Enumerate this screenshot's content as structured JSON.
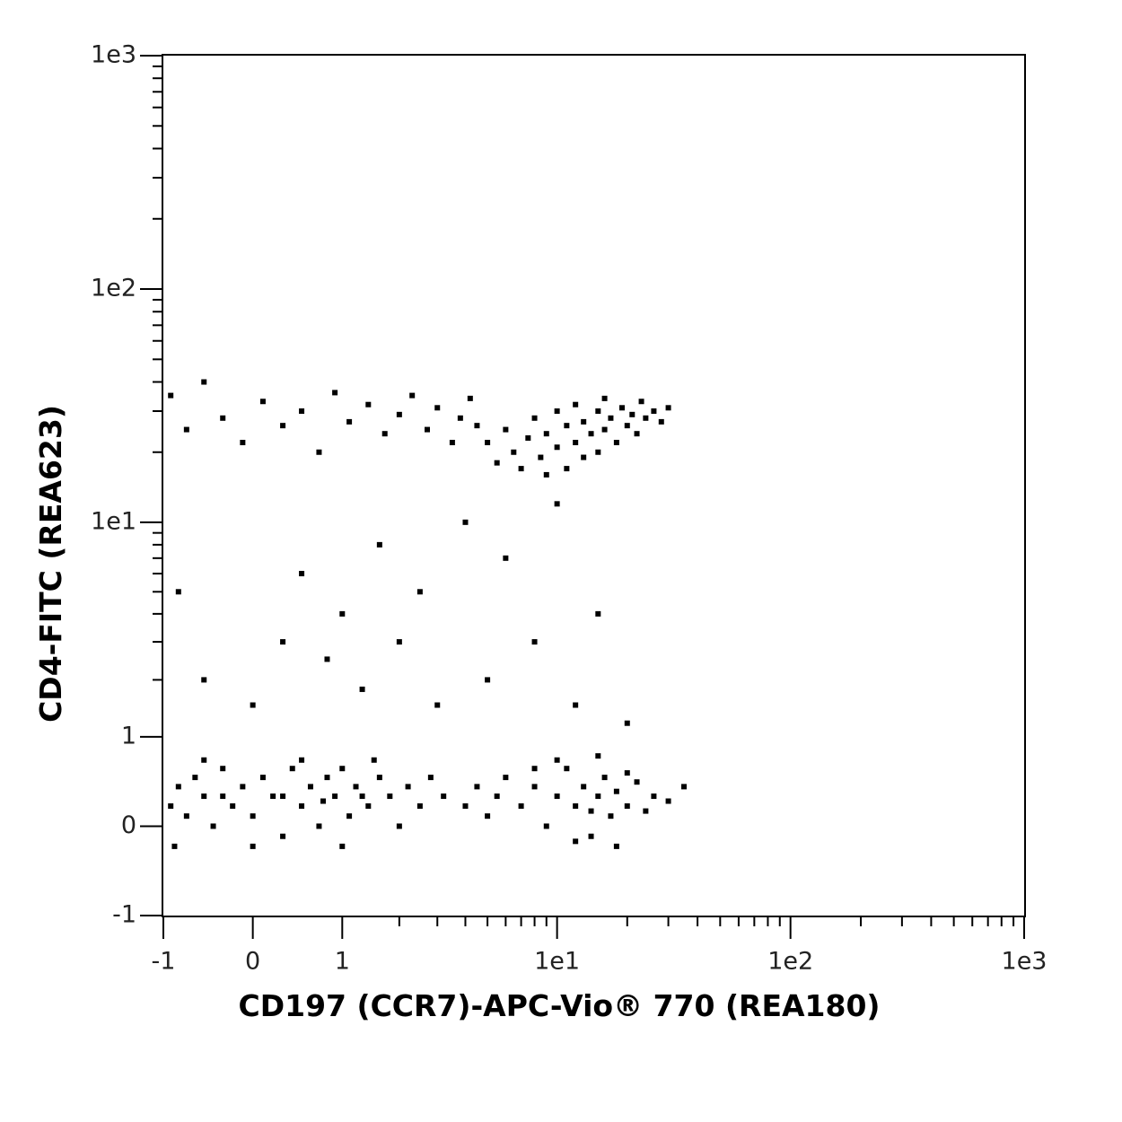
{
  "chart_data": {
    "type": "scatter",
    "xlabel": "CD197 (CCR7)-APC-Vio® 770 (REA180)",
    "ylabel": "CD4-FITC (REA623)",
    "xscale": "asinh",
    "yscale": "asinh",
    "xlim": [
      -1,
      1000
    ],
    "ylim": [
      -1,
      1000
    ],
    "xticks": [
      -1,
      0,
      1,
      {
        "value": 10,
        "label": "1e1"
      },
      {
        "value": 100,
        "label": "1e2"
      },
      {
        "value": 1000,
        "label": "1e3"
      }
    ],
    "yticks": [
      -1,
      0,
      1,
      {
        "value": 10,
        "label": "1e1"
      },
      {
        "value": 100,
        "label": "1e2"
      },
      {
        "value": 1000,
        "label": "1e3"
      }
    ],
    "xminorticks": [
      2,
      3,
      4,
      5,
      6,
      7,
      8,
      9,
      20,
      30,
      40,
      50,
      60,
      70,
      80,
      90,
      200,
      300,
      400,
      500,
      600,
      700,
      800,
      900
    ],
    "yminorticks": [
      2,
      3,
      4,
      5,
      6,
      7,
      8,
      9,
      20,
      30,
      40,
      50,
      60,
      70,
      80,
      90,
      200,
      300,
      400,
      500,
      600,
      700,
      800,
      900
    ],
    "series": [
      {
        "color": "#000000",
        "x": [
          -0.9,
          -0.8,
          -0.7,
          -0.6,
          -0.5,
          -0.4,
          -0.3,
          -0.2,
          -0.1,
          0,
          0.1,
          0.2,
          0.3,
          0.4,
          0.5,
          0.6,
          0.7,
          0.8,
          0.9,
          1.0,
          1.1,
          1.2,
          1.4,
          1.6,
          1.8,
          2.0,
          2.2,
          2.5,
          2.8,
          3.2,
          -0.85,
          -0.5,
          0.0,
          0.5,
          1.0,
          1.5,
          -0.3,
          0.3,
          0.75,
          1.3,
          4,
          4.5,
          5,
          5.5,
          6,
          7,
          8,
          9,
          10,
          11,
          12,
          13,
          14,
          15,
          16,
          17,
          18,
          20,
          22,
          24,
          26,
          30,
          10,
          15,
          12,
          18,
          8,
          20,
          35,
          14,
          5,
          5.5,
          6,
          6.5,
          7,
          7.5,
          8,
          8.5,
          9,
          10,
          10,
          11,
          11,
          12,
          12,
          13,
          13,
          14,
          15,
          15,
          16,
          17,
          18,
          19,
          20,
          21,
          22,
          23,
          24,
          26,
          28,
          4.5,
          9,
          16,
          30,
          -0.9,
          -0.7,
          -0.5,
          -0.3,
          -0.1,
          0.1,
          0.3,
          0.5,
          0.7,
          0.9,
          1.1,
          1.4,
          1.7,
          2.0,
          2.3,
          2.7,
          3.0,
          3.5,
          3.8,
          4.2,
          -0.8,
          -0.5,
          0,
          0.3,
          0.5,
          0.8,
          1,
          1.3,
          1.6,
          2,
          2.5,
          3,
          4,
          5,
          6,
          8,
          10,
          12,
          15,
          20
        ],
        "y": [
          0.2,
          0.4,
          0.1,
          0.5,
          0.3,
          0.0,
          0.6,
          0.2,
          0.4,
          0.1,
          0.5,
          0.3,
          -0.1,
          0.6,
          0.2,
          0.4,
          0.0,
          0.5,
          0.3,
          0.6,
          0.1,
          0.4,
          0.2,
          0.5,
          0.3,
          0.0,
          0.4,
          0.2,
          0.5,
          0.3,
          -0.2,
          0.7,
          -0.2,
          0.7,
          -0.2,
          0.7,
          0.3,
          0.3,
          0.25,
          0.3,
          0.2,
          0.4,
          0.1,
          0.3,
          0.5,
          0.2,
          0.4,
          0.0,
          0.3,
          0.6,
          0.2,
          0.4,
          -0.1,
          0.3,
          0.5,
          0.1,
          0.35,
          0.2,
          0.45,
          0.15,
          0.3,
          0.25,
          0.7,
          0.75,
          -0.15,
          -0.2,
          0.6,
          0.55,
          0.4,
          0.15,
          22,
          18,
          25,
          20,
          17,
          23,
          28,
          19,
          24,
          21,
          30,
          17,
          26,
          22,
          32,
          19,
          27,
          24,
          20,
          30,
          25,
          28,
          22,
          31,
          26,
          29,
          24,
          33,
          28,
          30,
          27,
          26,
          16,
          34,
          31,
          35,
          25,
          40,
          28,
          22,
          33,
          26,
          30,
          20,
          36,
          27,
          32,
          24,
          29,
          35,
          25,
          31,
          22,
          28,
          34,
          5,
          2,
          1.5,
          3,
          6,
          2.5,
          4,
          1.8,
          8,
          3,
          5,
          1.5,
          10,
          2,
          7,
          3,
          12,
          1.5,
          4,
          1.2
        ]
      }
    ]
  }
}
